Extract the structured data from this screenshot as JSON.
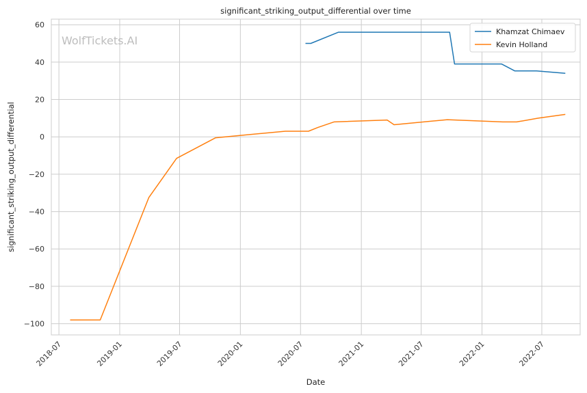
{
  "chart_data": {
    "type": "line",
    "title": "significant_striking_output_differential over time",
    "xlabel": "Date",
    "ylabel": "significant_striking_output_differential",
    "watermark": "WolfTickets.AI",
    "grid": true,
    "legend_position": "top-right",
    "xlim": [
      "2018-06-08",
      "2022-10-25"
    ],
    "ylim": [
      -106,
      63
    ],
    "x_ticks": [
      "2018-07",
      "2019-01",
      "2019-07",
      "2020-01",
      "2020-07",
      "2021-01",
      "2021-07",
      "2022-01",
      "2022-07"
    ],
    "y_ticks": [
      -100,
      -80,
      -60,
      -40,
      -20,
      0,
      20,
      40,
      60
    ],
    "y_tick_labels": [
      "−100",
      "−80",
      "−60",
      "−40",
      "−20",
      "0",
      "20",
      "40",
      "60"
    ],
    "series": [
      {
        "name": "Khamzat Chimaev",
        "color": "#1f77b4",
        "points": [
          {
            "x": "2020-07-16",
            "y": 50
          },
          {
            "x": "2020-08-01",
            "y": 50
          },
          {
            "x": "2020-10-24",
            "y": 56
          },
          {
            "x": "2021-09-25",
            "y": 56
          },
          {
            "x": "2021-10-10",
            "y": 39
          },
          {
            "x": "2022-03-01",
            "y": 39
          },
          {
            "x": "2022-04-10",
            "y": 35.3
          },
          {
            "x": "2022-06-15",
            "y": 35.3
          },
          {
            "x": "2022-09-10",
            "y": 34
          }
        ]
      },
      {
        "name": "Kevin Holland",
        "color": "#ff7f0e",
        "points": [
          {
            "x": "2018-08-04",
            "y": -98
          },
          {
            "x": "2018-11-03",
            "y": -98
          },
          {
            "x": "2019-03-30",
            "y": -32.5
          },
          {
            "x": "2019-06-22",
            "y": -11.5
          },
          {
            "x": "2019-10-18",
            "y": -0.5
          },
          {
            "x": "2020-01-15",
            "y": 1
          },
          {
            "x": "2020-05-16",
            "y": 3
          },
          {
            "x": "2020-07-25",
            "y": 3
          },
          {
            "x": "2020-08-22",
            "y": 5
          },
          {
            "x": "2020-10-10",
            "y": 8
          },
          {
            "x": "2021-03-20",
            "y": 9
          },
          {
            "x": "2021-04-10",
            "y": 6.5
          },
          {
            "x": "2021-09-18",
            "y": 9.2
          },
          {
            "x": "2022-03-05",
            "y": 8
          },
          {
            "x": "2022-04-16",
            "y": 8
          },
          {
            "x": "2022-06-20",
            "y": 10
          },
          {
            "x": "2022-09-10",
            "y": 12
          }
        ]
      }
    ]
  }
}
